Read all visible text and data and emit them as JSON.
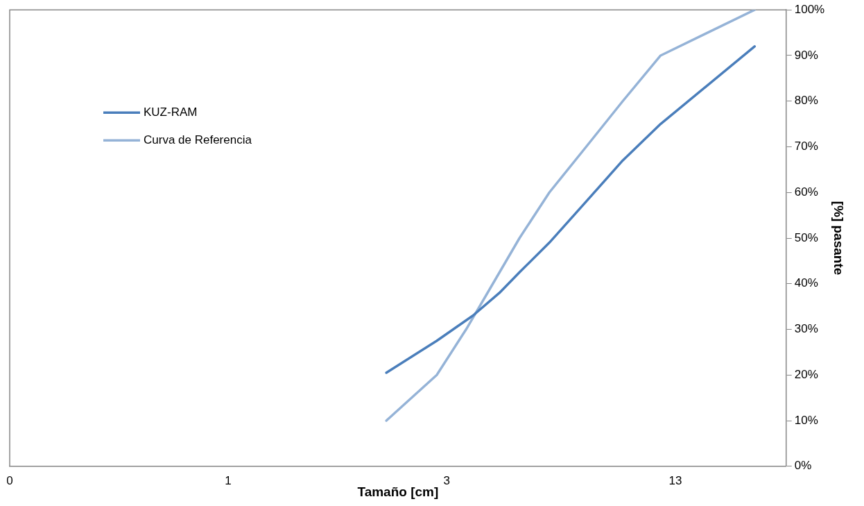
{
  "chart_data": {
    "type": "line",
    "xlabel": "Tamaño [cm]",
    "ylabel": "[%] pasante",
    "log": "x",
    "xlim": [
      0.29,
      23.6
    ],
    "xticks": [
      {
        "value": 0.29,
        "label": "0"
      },
      {
        "value": 1,
        "label": "1"
      },
      {
        "value": 3.45,
        "label": "3"
      },
      {
        "value": 12.6,
        "label": "13"
      }
    ],
    "ylim": [
      0,
      100
    ],
    "yticks": [
      {
        "value": 0,
        "label": "0%"
      },
      {
        "value": 10,
        "label": "10%"
      },
      {
        "value": 20,
        "label": "20%"
      },
      {
        "value": 30,
        "label": "30%"
      },
      {
        "value": 40,
        "label": "40%"
      },
      {
        "value": 50,
        "label": "50%"
      },
      {
        "value": 60,
        "label": "60%"
      },
      {
        "value": 70,
        "label": "70%"
      },
      {
        "value": 80,
        "label": "80%"
      },
      {
        "value": 90,
        "label": "90%"
      },
      {
        "value": 100,
        "label": "100%"
      }
    ],
    "grid": false,
    "legend": "top left",
    "marker": "none",
    "line_style": "solid",
    "series": [
      {
        "name": "KUZ-RAM",
        "color": "#4a7ebb",
        "x": [
          2.45,
          3.26,
          4.0,
          4.65,
          5.21,
          6.17,
          7.6,
          9.35,
          11.59,
          19.74
        ],
        "values": [
          20.5,
          27.5,
          33,
          38,
          42.5,
          49,
          58,
          67,
          75,
          92
        ]
      },
      {
        "name": "Curva de Referencia",
        "color": "#95b3d7",
        "x": [
          2.45,
          3.26,
          3.85,
          4.48,
          5.21,
          6.17,
          7.6,
          9.35,
          11.59,
          19.74
        ],
        "values": [
          10,
          20,
          30,
          40,
          50,
          60,
          70,
          80,
          90,
          100
        ]
      }
    ]
  }
}
